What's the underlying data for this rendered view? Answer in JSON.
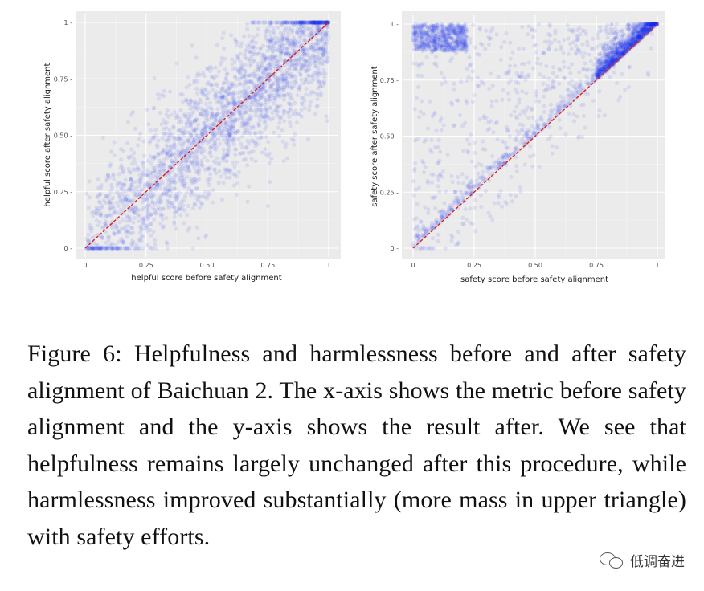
{
  "chart_data": [
    {
      "type": "scatter",
      "xlabel": "helpful score before safety alignment",
      "ylabel": "helpful score after safety alignment",
      "xlim": [
        0,
        1
      ],
      "ylim": [
        0,
        1
      ],
      "xticks": [
        "0",
        "0.25",
        "0.50",
        "0.75",
        "1"
      ],
      "yticks": [
        "0 -",
        "0.25 -",
        "0.50 -",
        "0.75 -",
        "1 -"
      ],
      "tick_values": [
        0,
        0.25,
        0.5,
        0.75,
        1
      ],
      "grid": true,
      "reference_line": {
        "x": [
          0,
          1
        ],
        "y": [
          0,
          1
        ],
        "color": "#e0201b",
        "style": "dashed"
      },
      "point_color": "#1a2ff0",
      "background": "#ebebeb",
      "distribution": "Points spread symmetrically around the diagonal, densest along y = x and near (0.9, 0.9)"
    },
    {
      "type": "scatter",
      "xlabel": "safety score before safety alignment",
      "ylabel": "safety score after safety alignment",
      "xlim": [
        0,
        1
      ],
      "ylim": [
        0,
        1
      ],
      "xticks": [
        "0",
        "0.25",
        "0.50",
        "0.75",
        "1"
      ],
      "yticks": [
        "0 -",
        "0.25 -",
        "0.50 -",
        "0.75 -",
        "1 -"
      ],
      "tick_values": [
        0,
        0.25,
        0.5,
        0.75,
        1
      ],
      "grid": true,
      "reference_line": {
        "x": [
          0,
          1
        ],
        "y": [
          0,
          1
        ],
        "color": "#e0201b",
        "style": "dashed"
      },
      "point_color": "#1a2ff0",
      "background": "#ebebeb",
      "distribution": "Most mass in upper triangle; dense band at y ≈ 0.9–1 across x ≈ 0–0.2, dense cluster near (1,1)"
    }
  ],
  "caption": "Figure 6: Helpfulness and harmlessness before and after safety alignment of Baichuan 2. The x-axis shows the metric before safety alignment and the y-axis shows the result after.  We see that helpfulness remains largely unchanged after this procedure, while harmlessness improved substantially (more mass in upper triangle) with safety efforts.",
  "watermark": {
    "text": "低调奋进",
    "icon": "wechat-bubbles-icon"
  }
}
